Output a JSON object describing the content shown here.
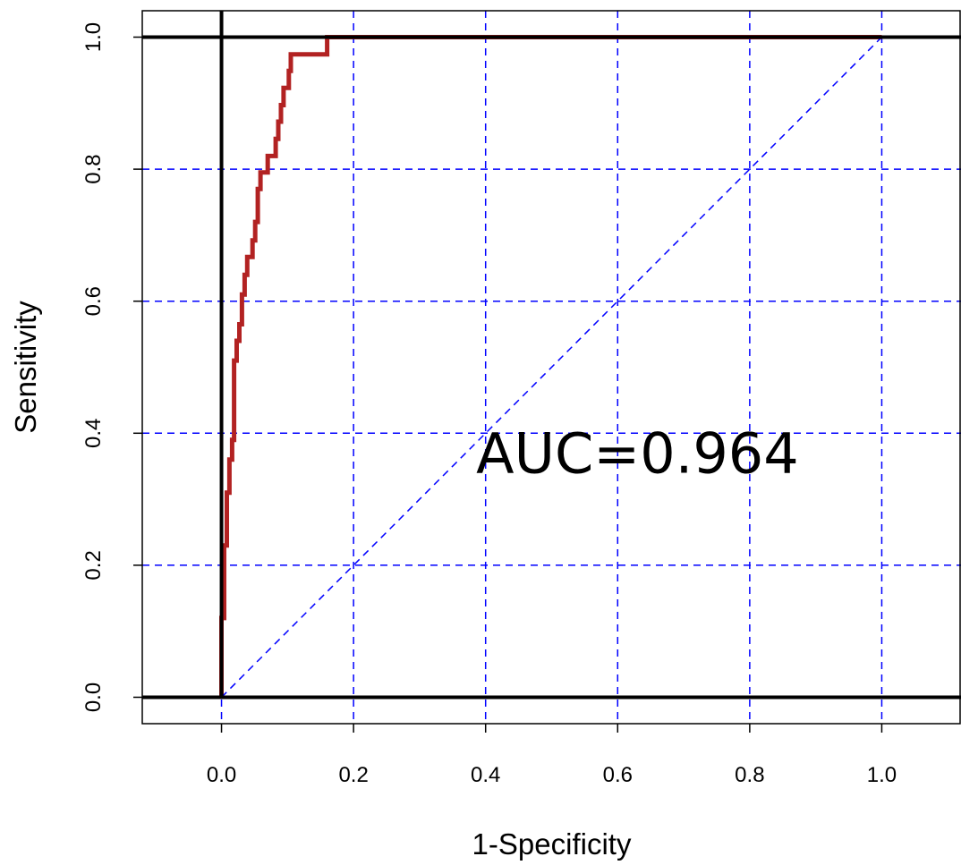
{
  "chart_data": {
    "type": "line",
    "xlabel": "1-Specificity",
    "ylabel": "Sensitivity",
    "xlim": [
      -0.12,
      1.12
    ],
    "ylim": [
      -0.04,
      1.04
    ],
    "x_ticks": [
      "0.0",
      "0.2",
      "0.4",
      "0.6",
      "0.8",
      "1.0"
    ],
    "y_ticks": [
      "0.0",
      "0.2",
      "0.4",
      "0.6",
      "0.8",
      "1.0"
    ],
    "grid": true,
    "grid_color": "#0000ff",
    "annotation": "AUC=0.964",
    "reference_lines": [
      {
        "orientation": "vertical",
        "value": 0.0,
        "color": "#000000"
      },
      {
        "orientation": "horizontal",
        "value": 0.0,
        "color": "#000000"
      },
      {
        "orientation": "horizontal",
        "value": 1.0,
        "color": "#000000"
      }
    ],
    "diagonal": {
      "from": [
        0,
        0
      ],
      "to": [
        1,
        1
      ],
      "color": "#0000ff"
    },
    "series": [
      {
        "color": "#b22222",
        "x": [
          0.0,
          0.0,
          0.004,
          0.004,
          0.008,
          0.008,
          0.012,
          0.012,
          0.016,
          0.016,
          0.019,
          0.019,
          0.023,
          0.023,
          0.027,
          0.027,
          0.031,
          0.031,
          0.035,
          0.035,
          0.039,
          0.039,
          0.047,
          0.047,
          0.051,
          0.051,
          0.055,
          0.055,
          0.059,
          0.059,
          0.062,
          0.062,
          0.07,
          0.07,
          0.082,
          0.082,
          0.086,
          0.086,
          0.09,
          0.09,
          0.094,
          0.094,
          0.102,
          0.102,
          0.105,
          0.105,
          0.109,
          0.109,
          0.16,
          0.16,
          0.2,
          0.4,
          0.6,
          0.8,
          1.0
        ],
        "y": [
          0.0,
          0.12,
          0.12,
          0.23,
          0.23,
          0.31,
          0.31,
          0.36,
          0.36,
          0.39,
          0.39,
          0.51,
          0.51,
          0.54,
          0.54,
          0.565,
          0.565,
          0.61,
          0.61,
          0.64,
          0.64,
          0.667,
          0.667,
          0.692,
          0.692,
          0.72,
          0.72,
          0.77,
          0.77,
          0.795,
          0.795,
          0.795,
          0.795,
          0.82,
          0.82,
          0.846,
          0.846,
          0.872,
          0.872,
          0.897,
          0.897,
          0.923,
          0.923,
          0.949,
          0.949,
          0.974,
          0.974,
          0.974,
          0.974,
          1.0,
          1.0,
          1.0,
          1.0,
          1.0,
          1.0
        ]
      }
    ]
  }
}
